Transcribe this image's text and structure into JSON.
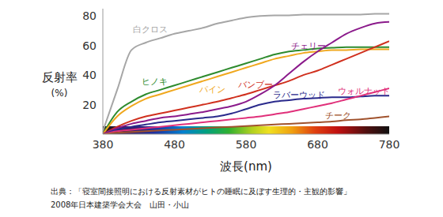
{
  "chart_data": {
    "type": "line",
    "x_label": "波長(nm)",
    "y_label": [
      "反射率",
      "(%)"
    ],
    "source": [
      "出典：「寝室間接照明における反射素材がヒトの睡眠に及ぼす生理的・主観的影響」",
      "2008年日本建築学会大会　山田・小山"
    ],
    "x": [
      380,
      400,
      420,
      440,
      460,
      480,
      500,
      520,
      540,
      560,
      580,
      600,
      620,
      640,
      660,
      680,
      700,
      720,
      740,
      760,
      780
    ],
    "xlim": [
      380,
      780
    ],
    "xticks": [
      380,
      480,
      580,
      680,
      780
    ],
    "ylim": [
      0,
      85
    ],
    "yticks": [
      20,
      40,
      60,
      80
    ],
    "grid": false,
    "series": [
      {
        "name": "白クロス",
        "color": "#a6a6a6",
        "values": [
          2,
          30,
          57,
          62,
          65,
          68,
          70,
          72,
          75,
          77,
          79,
          80,
          80.5,
          80.5,
          81,
          81,
          81,
          81,
          81,
          81.5,
          81.5
        ]
      },
      {
        "name": "ヒノキ",
        "color": "#2e8b2e",
        "values": [
          0,
          15,
          22,
          27,
          30,
          33,
          36,
          39,
          42,
          45,
          48,
          51,
          54,
          56,
          57,
          58,
          58.5,
          59,
          59,
          59,
          59
        ]
      },
      {
        "name": "パイン",
        "color": "#f0a81e",
        "values": [
          0,
          12,
          19,
          24,
          27,
          30,
          33,
          36,
          39,
          42,
          45,
          48,
          51,
          53,
          55,
          56,
          57,
          57,
          57.5,
          57.5,
          57.5
        ]
      },
      {
        "name": "バンブー",
        "color": "#d0301e",
        "values": [
          0,
          5,
          9,
          12,
          14,
          16,
          18,
          20,
          22,
          24.5,
          27,
          30,
          33,
          36,
          40,
          43,
          47,
          51,
          55,
          59,
          63
        ]
      },
      {
        "name": "チェリー",
        "color": "#8b1a8b",
        "values": [
          0,
          4,
          7,
          9,
          11,
          12,
          13.5,
          15,
          17,
          19,
          22,
          27,
          33,
          41,
          49,
          56,
          62,
          68,
          72,
          75,
          76
        ]
      },
      {
        "name": "ラバーウッド",
        "color": "#2a2a8c",
        "values": [
          0,
          3,
          5,
          6.5,
          8,
          9,
          10,
          11,
          12,
          14,
          17,
          20,
          22,
          23,
          24,
          24.5,
          25,
          25,
          25.5,
          26,
          26
        ]
      },
      {
        "name": "ウォルナット",
        "color": "#e0307a",
        "values": [
          0,
          2,
          3,
          4,
          5,
          6,
          7,
          8,
          9,
          10,
          11,
          12,
          13.5,
          15,
          17,
          19,
          21,
          23.5,
          26,
          28.5,
          31
        ]
      },
      {
        "name": "チーク",
        "color": "#a0522d",
        "values": [
          0,
          1,
          1.5,
          2,
          2.5,
          3,
          3.5,
          4,
          4.5,
          5,
          5.5,
          6,
          6.5,
          7,
          7.5,
          8,
          8.5,
          9.5,
          10,
          11,
          12
        ]
      }
    ]
  }
}
